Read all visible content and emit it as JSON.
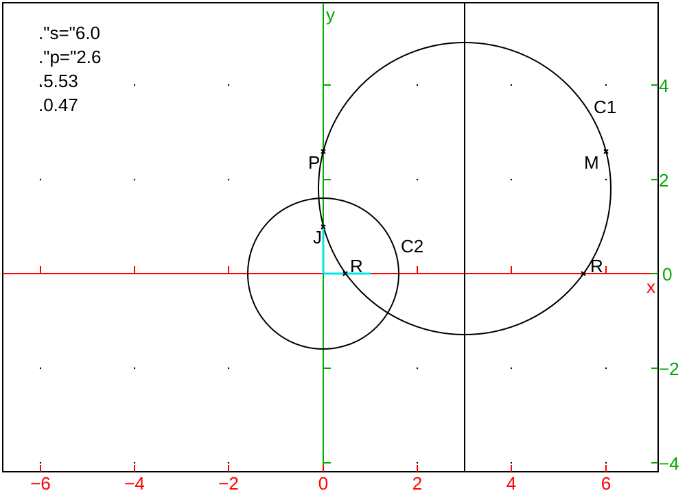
{
  "readouts": [
    ".\"s=\"6.0",
    ".\"p=\"2.6",
    ".5.53",
    ".0.47"
  ],
  "axes": {
    "x_label": "x",
    "y_label": "y",
    "x_ticks": [
      "−6",
      "−4",
      "−2",
      "0",
      "2",
      "4",
      "6"
    ],
    "y_ticks": [
      "4",
      "2",
      "0",
      "−2",
      "−4"
    ],
    "x_color": "#ff0000",
    "y_color": "#00aa00"
  },
  "colors": {
    "curve": "#000000",
    "segment": "#00e5e5",
    "frame": "#000000"
  },
  "points": {
    "P": {
      "label": "P",
      "x": 0,
      "y": 2.6
    },
    "M": {
      "label": "M",
      "x": 6.0,
      "y": 2.6
    },
    "J": {
      "label": "J",
      "x": 0,
      "y": 1.0
    },
    "R1": {
      "label": "R",
      "x": 0.47,
      "y": 0
    },
    "R2": {
      "label": "R",
      "x": 5.53,
      "y": 0
    }
  },
  "circles": {
    "C1": {
      "label": "C1",
      "cx": 3.0,
      "cy": 1.8,
      "r": 3.1
    },
    "C2": {
      "label": "C2",
      "cx": 0,
      "cy": 0,
      "r": 1.6
    }
  },
  "vertical_line_x": 3.0
}
